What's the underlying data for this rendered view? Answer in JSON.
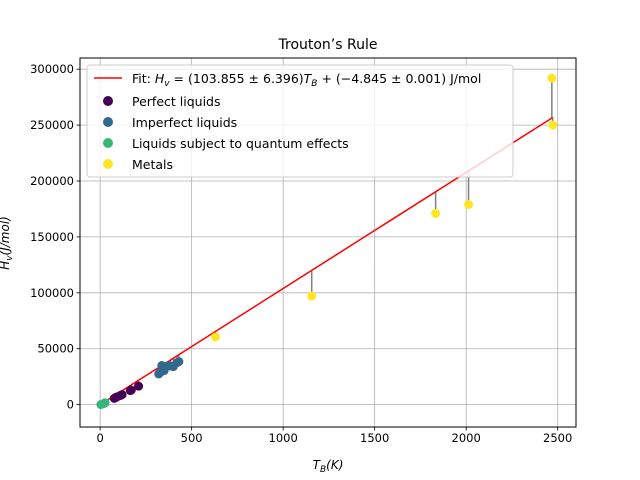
{
  "chart_data": {
    "type": "scatter",
    "title": "Trouton’s Rule",
    "xlabel_main": "T",
    "xlabel_sub": "B",
    "xlabel_tail": "(K)",
    "ylabel_main": "H",
    "ylabel_sub": "v",
    "ylabel_tail": "(J/mol)",
    "xlim": [
      -110,
      2600
    ],
    "ylim": [
      -20000,
      310000
    ],
    "xticks": [
      0,
      500,
      1000,
      1500,
      2000,
      2500
    ],
    "yticks": [
      0,
      50000,
      100000,
      150000,
      200000,
      250000,
      300000
    ],
    "grid": true,
    "legend_position": "top-left",
    "fit": {
      "label_prefix": "Fit: ",
      "label_equation": "H_v = (103.855 ± 6.396)T_B + (−4.845 ± 0.001) J/mol",
      "label_parts": {
        "H": "H",
        "v": "v",
        "eq1": " = (103.855 ± 6.396)",
        "T": "T",
        "B": "B",
        "eq2": " + (−4.845 ± 0.001) J/mol"
      },
      "slope": 103.855,
      "intercept": -4.845,
      "color": "#ff0000"
    },
    "residual_color": "#808080",
    "series": [
      {
        "name": "Perfect liquids",
        "color": "#440154",
        "points": [
          {
            "x": 77,
            "y": 5600
          },
          {
            "x": 87,
            "y": 6500
          },
          {
            "x": 90,
            "y": 6800
          },
          {
            "x": 111,
            "y": 8200
          },
          {
            "x": 120,
            "y": 9000
          },
          {
            "x": 165,
            "y": 12600
          },
          {
            "x": 170,
            "y": 13000
          },
          {
            "x": 210,
            "y": 16500
          }
        ]
      },
      {
        "name": "Imperfect liquids",
        "color": "#31688e",
        "points": [
          {
            "x": 320,
            "y": 27500
          },
          {
            "x": 330,
            "y": 29000
          },
          {
            "x": 337,
            "y": 35000
          },
          {
            "x": 350,
            "y": 30500
          },
          {
            "x": 373,
            "y": 35000
          },
          {
            "x": 385,
            "y": 34500
          },
          {
            "x": 400,
            "y": 34000
          },
          {
            "x": 420,
            "y": 37500
          },
          {
            "x": 430,
            "y": 38500
          }
        ]
      },
      {
        "name": "Liquids subject to quantum effects",
        "color": "#35b779",
        "points": [
          {
            "x": 4,
            "y": 100
          },
          {
            "x": 20,
            "y": 900
          },
          {
            "x": 27,
            "y": 1700
          }
        ]
      },
      {
        "name": "Metals",
        "color": "#fde725",
        "points": [
          {
            "x": 630,
            "y": 60500
          },
          {
            "x": 1156,
            "y": 97000
          },
          {
            "x": 1833,
            "y": 171000
          },
          {
            "x": 2013,
            "y": 179000
          },
          {
            "x": 2468,
            "y": 292000
          },
          {
            "x": 2473,
            "y": 250000
          }
        ]
      }
    ]
  }
}
